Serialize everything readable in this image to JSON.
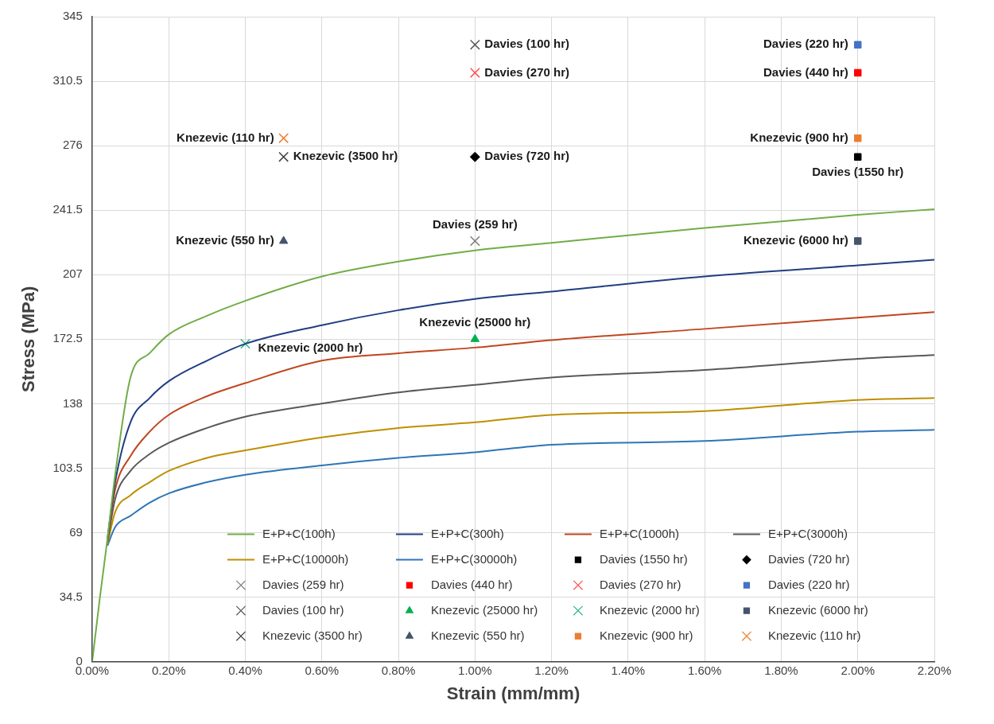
{
  "chart_data": {
    "type": "scatter",
    "xlabel": "Strain (mm/mm)",
    "ylabel": "Stress (MPa)",
    "xlim": [
      0,
      2.2
    ],
    "xticks": [
      {
        "value": 0,
        "label": "0.00%"
      },
      {
        "value": 0.2,
        "label": "0.20%"
      },
      {
        "value": 0.4,
        "label": "0.40%"
      },
      {
        "value": 0.6,
        "label": "0.60%"
      },
      {
        "value": 0.8,
        "label": "0.80%"
      },
      {
        "value": 1.0,
        "label": "1.00%"
      },
      {
        "value": 1.2,
        "label": "1.20%"
      },
      {
        "value": 1.4,
        "label": "1.40%"
      },
      {
        "value": 1.6,
        "label": "1.60%"
      },
      {
        "value": 1.8,
        "label": "1.80%"
      },
      {
        "value": 2.0,
        "label": "2.00%"
      },
      {
        "value": 2.2,
        "label": "2.20%"
      }
    ],
    "ylim": [
      0,
      345
    ],
    "yticks": [
      0,
      34.5,
      69,
      103.5,
      138,
      172.5,
      207,
      241.5,
      276,
      310.5,
      345
    ],
    "grid": true,
    "legend": "bottom",
    "series": [
      {
        "name": "E+P+C(100h)",
        "type": "line",
        "marker": "none",
        "color": "#70ad47",
        "x": [
          0,
          0.02,
          0.04,
          0.06,
          0.1,
          0.15,
          0.2,
          0.3,
          0.4,
          0.6,
          0.8,
          1.0,
          1.2,
          1.6,
          2.0,
          2.2
        ],
        "values": [
          0,
          34,
          66,
          100,
          152,
          165,
          175,
          185,
          193,
          206,
          214,
          220,
          224,
          232,
          239,
          242
        ]
      },
      {
        "name": "E+P+C(300h)",
        "type": "line",
        "marker": "none",
        "color": "#203e82",
        "x": [
          0.04,
          0.06,
          0.1,
          0.15,
          0.2,
          0.3,
          0.4,
          0.6,
          0.8,
          1.0,
          1.2,
          1.6,
          2.0,
          2.2
        ],
        "values": [
          66,
          96,
          128,
          141,
          150,
          161,
          170,
          180,
          188,
          194,
          198,
          206,
          212,
          215
        ]
      },
      {
        "name": "E+P+C(1000h)",
        "type": "line",
        "marker": "none",
        "color": "#c0461f",
        "x": [
          0.04,
          0.06,
          0.1,
          0.15,
          0.2,
          0.3,
          0.4,
          0.6,
          0.8,
          1.0,
          1.2,
          1.6,
          2.0,
          2.2
        ],
        "values": [
          65,
          92,
          110,
          123,
          132,
          142,
          149,
          161,
          165,
          168,
          172,
          178,
          184,
          187
        ]
      },
      {
        "name": "E+P+C(3000h)",
        "type": "line",
        "marker": "none",
        "color": "#595959",
        "x": [
          0.04,
          0.06,
          0.1,
          0.15,
          0.2,
          0.3,
          0.4,
          0.6,
          0.8,
          1.0,
          1.2,
          1.6,
          2.0,
          2.2
        ],
        "values": [
          64,
          87,
          102,
          111,
          117,
          125,
          131,
          138,
          144,
          148,
          152,
          156,
          162,
          164
        ]
      },
      {
        "name": "E+P+C(10000h)",
        "type": "line",
        "marker": "none",
        "color": "#bf8f00",
        "x": [
          0.04,
          0.06,
          0.1,
          0.15,
          0.2,
          0.3,
          0.4,
          0.6,
          0.8,
          1.0,
          1.2,
          1.6,
          2.0,
          2.2
        ],
        "values": [
          63,
          80,
          89,
          96,
          102,
          109,
          113,
          120,
          125,
          128,
          132,
          134,
          140,
          141
        ]
      },
      {
        "name": "E+P+C(30000h)",
        "type": "line",
        "marker": "none",
        "color": "#2e75b6",
        "x": [
          0.04,
          0.06,
          0.1,
          0.15,
          0.2,
          0.3,
          0.4,
          0.6,
          0.8,
          1.0,
          1.2,
          1.6,
          2.0,
          2.2
        ],
        "values": [
          62,
          72,
          78,
          85,
          90,
          96,
          100,
          105,
          109,
          112,
          116,
          118,
          123,
          124
        ]
      },
      {
        "name": "Davies (1550 hr)",
        "type": "scatter",
        "marker": "square",
        "color": "#000000",
        "x": [
          2.0
        ],
        "values": [
          270
        ]
      },
      {
        "name": "Davies (720 hr)",
        "type": "scatter",
        "marker": "diamond",
        "color": "#000000",
        "x": [
          1.0
        ],
        "values": [
          270
        ]
      },
      {
        "name": "Davies (259 hr)",
        "type": "scatter",
        "marker": "cross",
        "color": "#7f7f7f",
        "x": [
          1.0
        ],
        "values": [
          225
        ]
      },
      {
        "name": "Davies (440 hr)",
        "type": "scatter",
        "marker": "square",
        "color": "#ff0000",
        "x": [
          2.0
        ],
        "values": [
          315
        ]
      },
      {
        "name": "Davies (270 hr)",
        "type": "scatter",
        "marker": "cross",
        "color": "#ff5050",
        "x": [
          1.0
        ],
        "values": [
          315
        ]
      },
      {
        "name": "Davies (220 hr)",
        "type": "scatter",
        "marker": "square",
        "color": "#4472c4",
        "x": [
          2.0
        ],
        "values": [
          330
        ]
      },
      {
        "name": "Davies (100 hr)",
        "type": "scatter",
        "marker": "cross",
        "color": "#595959",
        "x": [
          1.0
        ],
        "values": [
          330
        ]
      },
      {
        "name": "Knezevic (25000 hr)",
        "type": "scatter",
        "marker": "triangle",
        "color": "#00b050",
        "x": [
          1.0
        ],
        "values": [
          172.5
        ]
      },
      {
        "name": "Knezevic (2000 hr)",
        "type": "scatter",
        "marker": "cross",
        "color": "#2fb58a",
        "x": [
          0.4
        ],
        "values": [
          170
        ]
      },
      {
        "name": "Knezevic (6000 hr)",
        "type": "scatter",
        "marker": "square",
        "color": "#44546a",
        "x": [
          2.0
        ],
        "values": [
          225
        ]
      },
      {
        "name": "Knezevic (3500 hr)",
        "type": "scatter",
        "marker": "cross",
        "color": "#404040",
        "x": [
          0.5
        ],
        "values": [
          270
        ]
      },
      {
        "name": "Knezevic (550 hr)",
        "type": "scatter",
        "marker": "triangle",
        "color": "#44546a",
        "x": [
          0.5
        ],
        "values": [
          225
        ]
      },
      {
        "name": "Knezevic (900 hr)",
        "type": "scatter",
        "marker": "square",
        "color": "#ed7d31",
        "x": [
          2.0
        ],
        "values": [
          280
        ]
      },
      {
        "name": "Knezevic (110 hr)",
        "type": "scatter",
        "marker": "cross",
        "color": "#ed7d31",
        "x": [
          0.5
        ],
        "values": [
          280
        ]
      }
    ]
  }
}
